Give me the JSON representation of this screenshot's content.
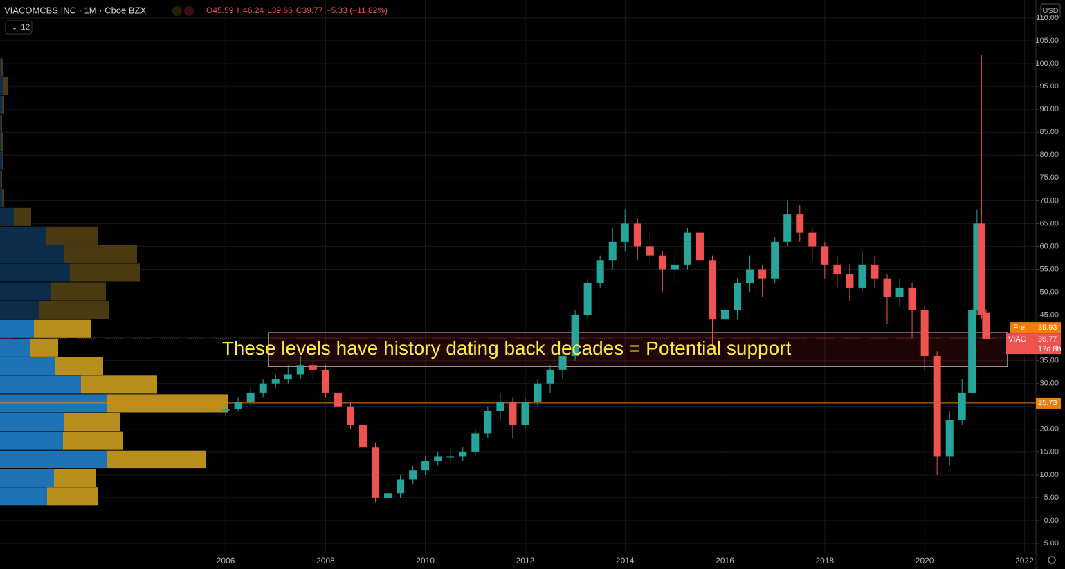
{
  "header": {
    "title": "VIACOMCBS INC · 1M · Cboe BZX",
    "ohlc": [
      "O45.59",
      "H46.24",
      "L39.66",
      "C39.77",
      "−5.33 (−11.82%)"
    ],
    "interval_selector": "12",
    "currency": "USD"
  },
  "chart_data": {
    "type": "candlestick",
    "x": [
      2006,
      2006.25,
      2006.5,
      2006.75,
      2007,
      2007.25,
      2007.5,
      2007.75,
      2008,
      2008.25,
      2008.5,
      2008.75,
      2009,
      2009.25,
      2009.5,
      2009.75,
      2010,
      2010.25,
      2010.5,
      2010.75,
      2011,
      2011.25,
      2011.5,
      2011.75,
      2012,
      2012.25,
      2012.5,
      2012.75,
      2013,
      2013.25,
      2013.5,
      2013.75,
      2014,
      2014.25,
      2014.5,
      2014.75,
      2015,
      2015.25,
      2015.5,
      2015.75,
      2016,
      2016.25,
      2016.5,
      2016.75,
      2017,
      2017.25,
      2017.5,
      2017.75,
      2018,
      2018.25,
      2018.5,
      2018.75,
      2019,
      2019.25,
      2019.5,
      2019.75,
      2020,
      2020.25,
      2020.5,
      2020.75,
      2020.95,
      2021.05,
      2021.14,
      2021.23
    ],
    "open": [
      24,
      24.5,
      26,
      28,
      30,
      31,
      32,
      34,
      33,
      28,
      25,
      21,
      16,
      5,
      6,
      9,
      11,
      13,
      14,
      14,
      15,
      19,
      24,
      26,
      21,
      26,
      30,
      33,
      36,
      45,
      52,
      57,
      61,
      65,
      60,
      58,
      55,
      56,
      63,
      57,
      44,
      46,
      52,
      55,
      53,
      61,
      67,
      63,
      60,
      56,
      54,
      51,
      56,
      53,
      49,
      51,
      46,
      36,
      14,
      22,
      28,
      46,
      65,
      45.59
    ],
    "high": [
      25.5,
      27,
      29,
      31,
      32,
      34,
      36,
      35,
      34,
      29,
      26,
      22,
      17,
      7,
      10,
      12,
      14,
      15,
      16,
      16,
      20,
      25,
      28,
      27,
      27,
      31,
      34,
      37,
      46,
      53,
      58,
      64,
      68,
      66,
      63,
      59,
      58,
      64,
      64,
      58,
      48,
      53,
      58,
      56,
      62,
      70,
      69,
      64,
      61,
      58,
      56,
      59,
      58,
      54,
      53,
      52,
      47,
      37,
      24,
      31,
      47,
      68,
      101.97,
      46.24
    ],
    "low": [
      23,
      24,
      25,
      27,
      29,
      30,
      31,
      31,
      27,
      24,
      20,
      14,
      4,
      3.5,
      5,
      8,
      10,
      12,
      12.5,
      13,
      14,
      18,
      22,
      18,
      20,
      25,
      28,
      31,
      35,
      44,
      51,
      55,
      59,
      57,
      56,
      50,
      52,
      55,
      55,
      38,
      38,
      44,
      50,
      49,
      52,
      60,
      61,
      57,
      53,
      51,
      48,
      50,
      51,
      43,
      47,
      40,
      33,
      10,
      12,
      21,
      27,
      45,
      44,
      39.66
    ],
    "close": [
      24.5,
      26,
      28,
      30,
      31,
      32,
      34,
      33,
      28,
      25,
      21,
      16,
      5,
      6,
      9,
      11,
      13,
      14,
      14,
      15,
      19,
      24,
      26,
      21,
      26,
      30,
      33,
      36,
      45,
      52,
      57,
      61,
      65,
      60,
      58,
      55,
      56,
      63,
      57,
      44,
      46,
      52,
      55,
      53,
      61,
      67,
      63,
      60,
      56,
      54,
      51,
      56,
      53,
      49,
      51,
      46,
      36,
      14,
      22,
      28,
      46,
      65,
      45.1,
      39.77
    ],
    "up_color": "#26a69a",
    "down_color": "#ef5350",
    "xlim": [
      2001.48,
      2022.23
    ],
    "ylim": [
      -5,
      110
    ],
    "xticks": [
      2006,
      2008,
      2010,
      2012,
      2014,
      2016,
      2018,
      2020,
      2022
    ],
    "yticks": [
      {
        "value": -5,
        "label": "−5.00"
      },
      {
        "value": 0,
        "label": "0.00"
      },
      {
        "value": 5,
        "label": "5.00"
      },
      {
        "value": 10,
        "label": "10.00"
      },
      {
        "value": 15,
        "label": "15.00"
      },
      {
        "value": 20,
        "label": "20.00"
      },
      {
        "value": 25,
        "label": "25.00"
      },
      {
        "value": 30,
        "label": "30.00"
      },
      {
        "value": 35,
        "label": "35.00"
      },
      {
        "value": 40,
        "label": "40.00"
      },
      {
        "value": 45,
        "label": "45.00"
      },
      {
        "value": 50,
        "label": "50.00"
      },
      {
        "value": 55,
        "label": "55.00"
      },
      {
        "value": 60,
        "label": "60.00"
      },
      {
        "value": 65,
        "label": "65.00"
      },
      {
        "value": 70,
        "label": "70.00"
      },
      {
        "value": 75,
        "label": "75.00"
      },
      {
        "value": 80,
        "label": "80.00"
      },
      {
        "value": 85,
        "label": "85.00"
      },
      {
        "value": 90,
        "label": "90.00"
      },
      {
        "value": 95,
        "label": "95.00"
      },
      {
        "value": 100,
        "label": "100.00"
      },
      {
        "value": 105,
        "label": "105.00"
      },
      {
        "value": 110,
        "label": "110.00"
      }
    ],
    "grid": true,
    "symbol": "VIAC",
    "countdown": "17d 8h",
    "premarket": {
      "label": "Pre",
      "value": 39.93,
      "color": "#f57c00"
    },
    "levels": [
      {
        "value": 25.73,
        "color": "#f57c00"
      }
    ],
    "support_zone": {
      "x": [
        2006.86,
        2021.66
      ],
      "y": [
        33.7,
        41.15
      ],
      "text": "These levels have history dating back decades = Potential support"
    },
    "volume_profile": {
      "bins": [
        3.2,
        7.3,
        11.4,
        15.4,
        19.5,
        23.6,
        27.7,
        31.8,
        35.8,
        39.9,
        44.0,
        48.1,
        52.2,
        56.3,
        60.3,
        64.4,
        68.5,
        72.6,
        76.7,
        80.8,
        84.8,
        88.9,
        93.0,
        97.1,
        101.2
      ],
      "up": [
        68,
        78,
        154,
        91,
        93,
        155,
        117,
        80,
        44,
        49,
        56,
        74,
        101,
        93,
        67,
        20,
        3,
        1,
        3,
        2,
        1,
        3,
        5,
        2
      ],
      "down": [
        73,
        61,
        144,
        87,
        80,
        175,
        110,
        69,
        40,
        83,
        102,
        79,
        101,
        105,
        74,
        25,
        3,
        2,
        2,
        2,
        2,
        3,
        6,
        2
      ],
      "value_area": [
        3.2,
        44.0
      ],
      "colors": {
        "up": "#1e73b4",
        "down": "#b88f1e",
        "up_dim": "#0d2c4a",
        "down_dim": "#4a3a12"
      }
    }
  }
}
